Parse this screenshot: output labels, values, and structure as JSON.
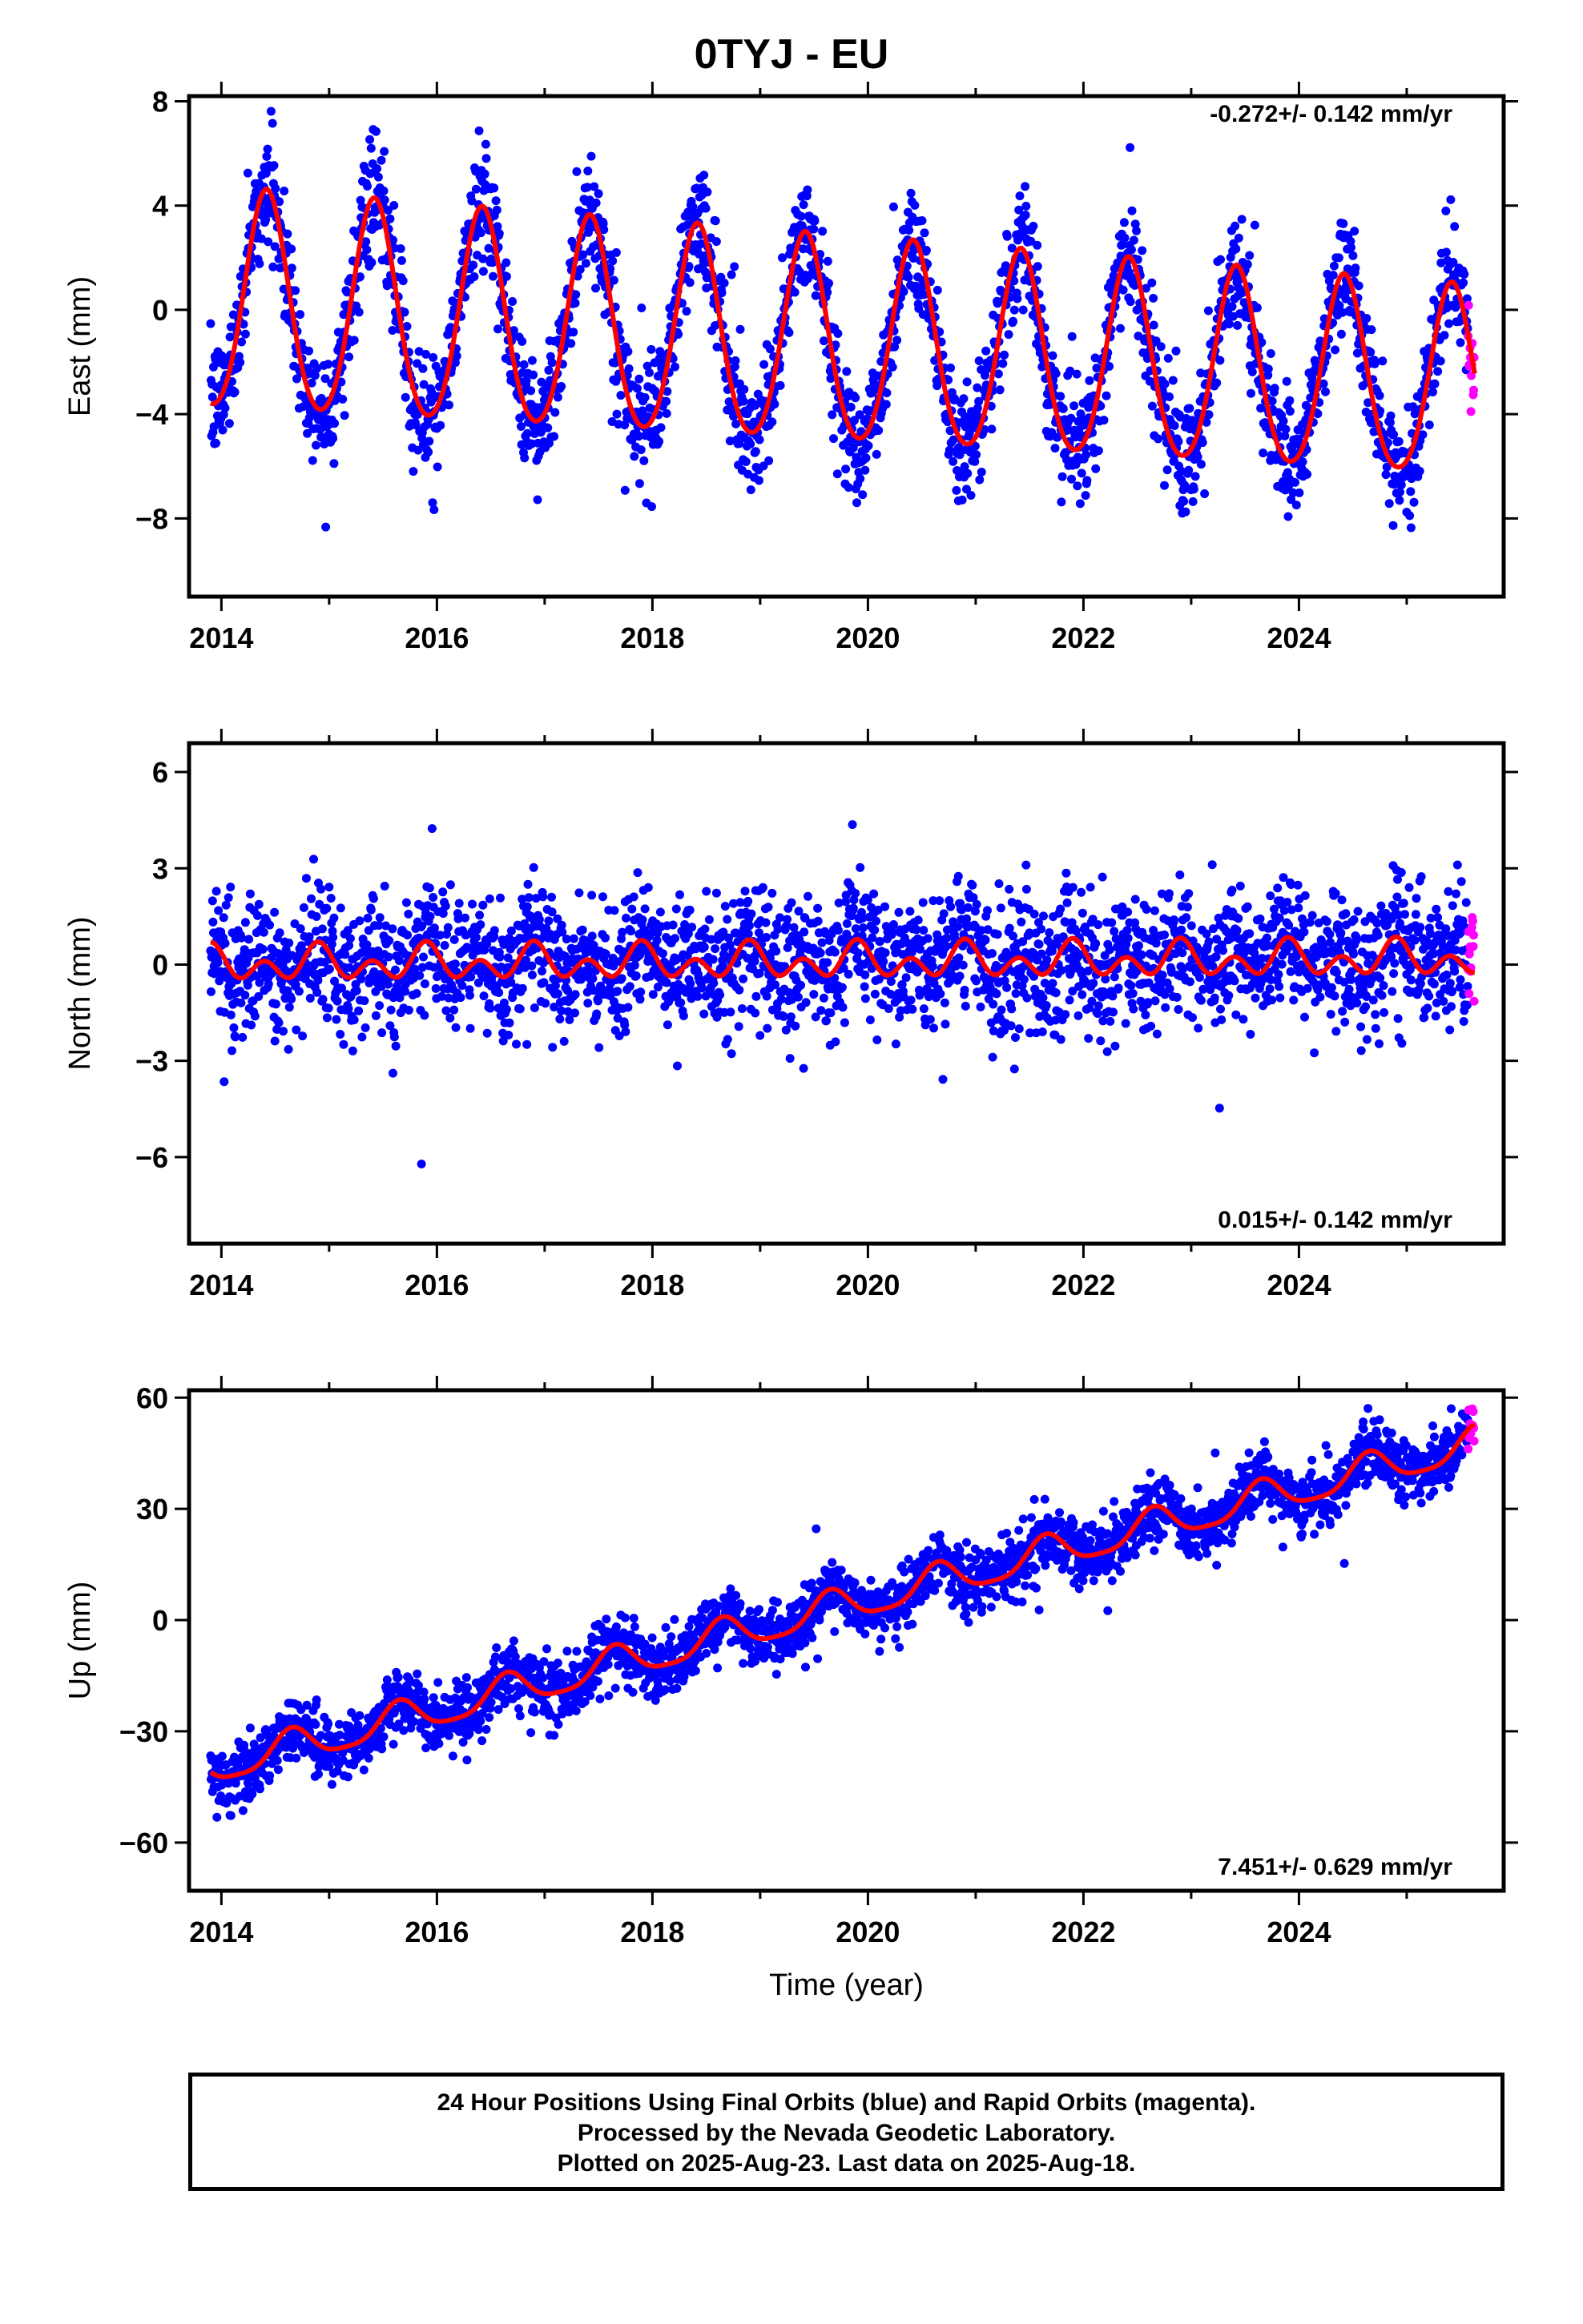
{
  "title": "0TYJ - EU",
  "xlabel": "Time (year)",
  "footer": {
    "line1": "24 Hour Positions Using Final Orbits (blue) and Rapid Orbits (magenta).",
    "line2": "Processed by the Nevada Geodetic Laboratory.",
    "line3": "Plotted on 2025-Aug-23. Last data on 2025-Aug-18."
  },
  "colors": {
    "final": "#0000ff",
    "rapid": "#ff00ff",
    "model": "#ff0000",
    "frame": "#000000"
  },
  "chart_data": [
    {
      "type": "scatter",
      "ylabel": "East (mm)",
      "rate_text": "-0.272+/- 0.142 mm/yr",
      "xlim": [
        2013.7,
        2025.9
      ],
      "ylim": [
        -11,
        8.2
      ],
      "xticks": [
        2014,
        2016,
        2018,
        2020,
        2022,
        2024
      ],
      "yticks": [
        -8,
        -4,
        0,
        4,
        8
      ],
      "ytick_labels": [
        "−8",
        "−4",
        "0",
        "4",
        "8"
      ],
      "data_start": 2013.9,
      "data_end": 2025.63,
      "rapid_start": 2025.57,
      "model": {
        "offset": 0.2,
        "trend": -0.272,
        "annual_amp": 4.2,
        "annual_amp_end": 3.6,
        "annual_phase_peak": 0.42,
        "semiannual_amp": 0.4
      },
      "noise_sd": 1.1
    },
    {
      "type": "scatter",
      "ylabel": "North (mm)",
      "rate_text": "0.015+/- 0.142 mm/yr",
      "xlim": [
        2013.7,
        2025.9
      ],
      "ylim": [
        -8.7,
        6.9
      ],
      "xticks": [
        2014,
        2016,
        2018,
        2020,
        2022,
        2024
      ],
      "yticks": [
        -6,
        -3,
        0,
        3,
        6
      ],
      "ytick_labels": [
        "−6",
        "−3",
        "0",
        "3",
        "6"
      ],
      "data_start": 2013.9,
      "data_end": 2025.63,
      "rapid_start": 2025.57,
      "model": {
        "offset": 0.0,
        "trend": 0.015,
        "annual_amp": 0.3,
        "annual_amp_end": 0.3,
        "annual_phase_peak": 0.9,
        "semiannual_amp": 0.4
      },
      "noise_sd": 1.0
    },
    {
      "type": "scatter",
      "ylabel": "Up (mm)",
      "rate_text": "7.451+/- 0.629 mm/yr",
      "xlim": [
        2013.7,
        2025.9
      ],
      "ylim": [
        -73,
        62
      ],
      "xticks": [
        2014,
        2016,
        2018,
        2020,
        2022,
        2024
      ],
      "yticks": [
        -60,
        -30,
        0,
        30,
        60
      ],
      "ytick_labels": [
        "−60",
        "−30",
        "0",
        "30",
        "60"
      ],
      "data_start": 2013.9,
      "data_end": 2025.63,
      "rapid_start": 2025.57,
      "model": {
        "offset": -40,
        "trend": 7.451,
        "annual_amp": 4.5,
        "annual_amp_end": 4.5,
        "annual_phase_peak": 0.65,
        "semiannual_amp": 1.0
      },
      "noise_sd": 4.2
    }
  ]
}
